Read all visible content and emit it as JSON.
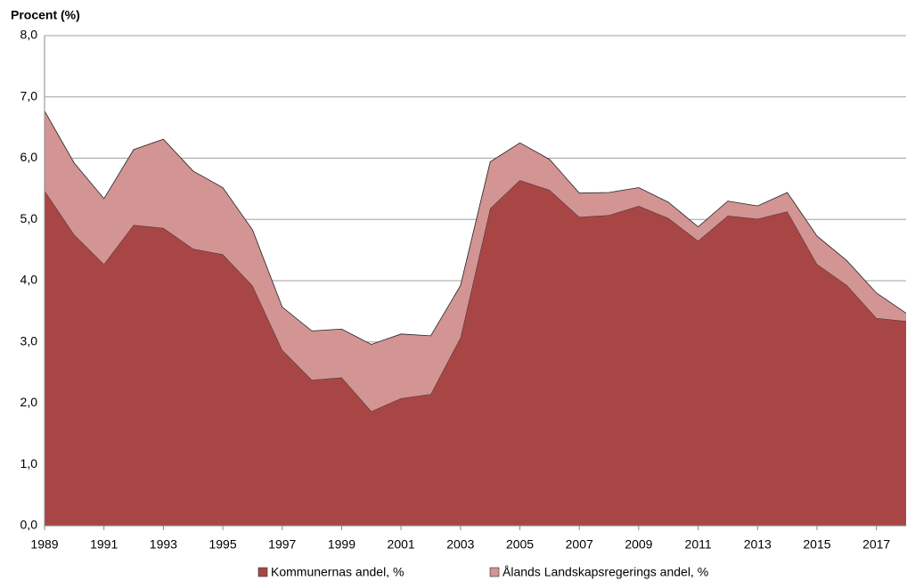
{
  "chart_data": {
    "type": "stacked-area",
    "y_label": "Procent (%)",
    "x": [
      1989,
      1990,
      1991,
      1992,
      1993,
      1994,
      1995,
      1996,
      1997,
      1998,
      1999,
      2000,
      2001,
      2002,
      2003,
      2004,
      2005,
      2006,
      2007,
      2008,
      2009,
      2010,
      2011,
      2012,
      2013,
      2014,
      2015,
      2016,
      2017,
      2018
    ],
    "series": [
      {
        "name": "Kommunernas andel, %",
        "color": "#a84646",
        "values": [
          5.47,
          4.75,
          4.27,
          4.91,
          4.86,
          4.52,
          4.43,
          3.92,
          2.87,
          2.38,
          2.42,
          1.87,
          2.08,
          2.15,
          3.07,
          5.18,
          5.64,
          5.48,
          5.04,
          5.07,
          5.22,
          5.02,
          4.65,
          5.06,
          5.01,
          5.13,
          4.27,
          3.93,
          3.39,
          3.34
        ]
      },
      {
        "name": "Ålands Landskapsregerings andel, %",
        "color": "#d39494",
        "values": [
          1.3,
          1.17,
          1.07,
          1.23,
          1.45,
          1.27,
          1.09,
          0.91,
          0.7,
          0.8,
          0.79,
          1.09,
          1.05,
          0.95,
          0.85,
          0.76,
          0.61,
          0.5,
          0.39,
          0.37,
          0.3,
          0.26,
          0.23,
          0.24,
          0.21,
          0.31,
          0.46,
          0.4,
          0.41,
          0.13
        ]
      }
    ],
    "xlim": [
      1989,
      2018
    ],
    "xticks": [
      1989,
      1991,
      1993,
      1995,
      1997,
      1999,
      2001,
      2003,
      2005,
      2007,
      2009,
      2011,
      2013,
      2015,
      2017
    ],
    "ylim": [
      0,
      8
    ],
    "yticks": [
      {
        "value": 0,
        "label": "0,0"
      },
      {
        "value": 1,
        "label": "1,0"
      },
      {
        "value": 2,
        "label": "2,0"
      },
      {
        "value": 3,
        "label": "3,0"
      },
      {
        "value": 4,
        "label": "4,0"
      },
      {
        "value": 5,
        "label": "5,0"
      },
      {
        "value": 6,
        "label": "6,0"
      },
      {
        "value": 7,
        "label": "7,0"
      },
      {
        "value": 8,
        "label": "8,0"
      }
    ],
    "grid": true
  }
}
